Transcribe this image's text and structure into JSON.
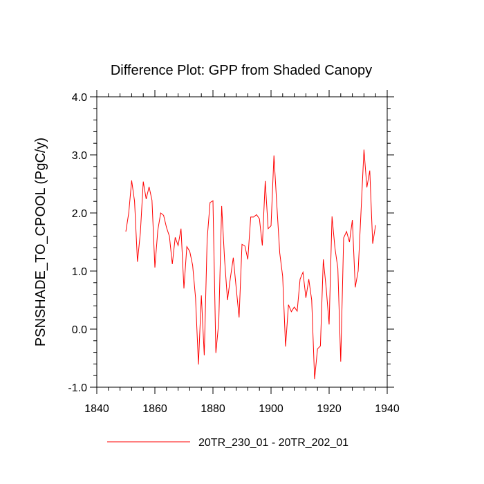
{
  "chart_data": {
    "type": "line",
    "title": "Difference Plot: GPP from Shaded Canopy",
    "xlabel": "",
    "ylabel": "PSNSHADE_TO_CPOOL  (PgC/y)",
    "xlim": [
      1840,
      1940
    ],
    "ylim": [
      -1.0,
      4.0
    ],
    "x_ticks": [
      1840,
      1860,
      1880,
      1900,
      1920,
      1940
    ],
    "x_tick_labels": [
      "1840",
      "1860",
      "1880",
      "1900",
      "1920",
      "1940"
    ],
    "y_ticks": [
      -1.0,
      0.0,
      1.0,
      2.0,
      3.0,
      4.0
    ],
    "y_tick_labels": [
      "-1.0",
      "0.0",
      "1.0",
      "2.0",
      "3.0",
      "4.0"
    ],
    "grid": false,
    "legend_position": "bottom-center",
    "series": [
      {
        "name": "20TR_230_01 - 20TR_202_01",
        "color": "#ff0000",
        "x": [
          1850,
          1851,
          1852,
          1853,
          1854,
          1855,
          1856,
          1857,
          1858,
          1859,
          1860,
          1861,
          1862,
          1863,
          1864,
          1865,
          1866,
          1867,
          1868,
          1869,
          1870,
          1871,
          1872,
          1873,
          1874,
          1875,
          1876,
          1877,
          1878,
          1879,
          1880,
          1881,
          1882,
          1883,
          1884,
          1885,
          1886,
          1887,
          1888,
          1889,
          1890,
          1891,
          1892,
          1893,
          1894,
          1895,
          1896,
          1897,
          1898,
          1899,
          1900,
          1901,
          1902,
          1903,
          1904,
          1905,
          1906,
          1907,
          1908,
          1909,
          1910,
          1911,
          1912,
          1913,
          1914,
          1915,
          1916,
          1917,
          1918,
          1919,
          1920,
          1921,
          1922,
          1923,
          1924,
          1925,
          1926,
          1927,
          1928,
          1929,
          1930,
          1931,
          1932,
          1933,
          1934,
          1935,
          1936
        ],
        "values": [
          1.68,
          2.0,
          2.56,
          2.2,
          1.16,
          1.66,
          2.54,
          2.24,
          2.45,
          2.22,
          1.06,
          1.7,
          2.0,
          1.96,
          1.75,
          1.6,
          1.12,
          1.58,
          1.44,
          1.73,
          0.7,
          1.42,
          1.34,
          1.1,
          0.54,
          -0.61,
          0.58,
          -0.45,
          1.55,
          2.18,
          2.21,
          -0.41,
          0.12,
          2.12,
          1.2,
          0.5,
          0.88,
          1.23,
          0.71,
          0.2,
          1.46,
          1.43,
          1.2,
          1.93,
          1.93,
          1.97,
          1.9,
          1.44,
          2.55,
          1.73,
          1.78,
          2.99,
          2.13,
          1.31,
          0.91,
          -0.3,
          0.42,
          0.3,
          0.38,
          0.31,
          0.86,
          0.98,
          0.54,
          0.86,
          0.5,
          -0.86,
          -0.34,
          -0.29,
          1.2,
          0.7,
          0.08,
          1.94,
          1.4,
          1.05,
          -0.56,
          1.57,
          1.68,
          1.5,
          1.88,
          0.72,
          1.0,
          2.04,
          3.09,
          2.44,
          2.73,
          1.47,
          1.79
        ]
      }
    ]
  }
}
